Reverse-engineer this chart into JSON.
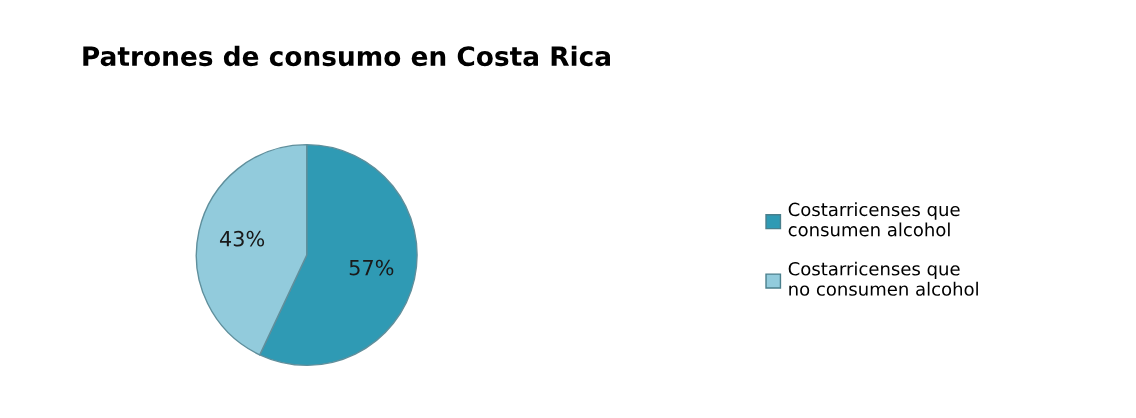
{
  "chart_data": {
    "type": "pie",
    "title": "Patrones de consumo en Costa Rica",
    "categories": [
      "Costarricenses que consumen alcohol",
      "Costarricenses que no consumen alcohol"
    ],
    "values": [
      57,
      43
    ],
    "colors": [
      "#2f9ab4",
      "#92cbdc"
    ],
    "value_labels": [
      "57%",
      "43%"
    ],
    "legend": "right"
  }
}
